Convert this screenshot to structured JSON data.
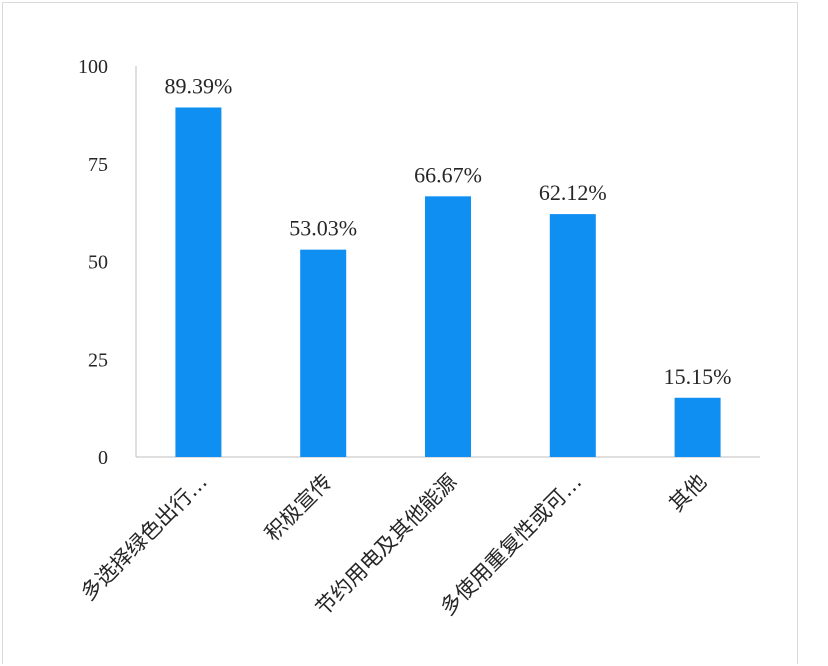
{
  "chart_data": {
    "type": "bar",
    "categories": [
      "多选择绿色出行…",
      "积极宣传",
      "节约用电及其他能源",
      "多使用重复性或可…",
      "其他"
    ],
    "values": [
      89.39,
      53.03,
      66.67,
      62.12,
      15.15
    ],
    "data_labels": [
      "89.39%",
      "53.03%",
      "66.67%",
      "62.12%",
      "15.15%"
    ],
    "yticks": [
      "0",
      "25",
      "50",
      "75",
      "100"
    ],
    "ylim": [
      0,
      100
    ],
    "grid": false,
    "legend": "none",
    "bar_color": "#0F8FF2"
  }
}
